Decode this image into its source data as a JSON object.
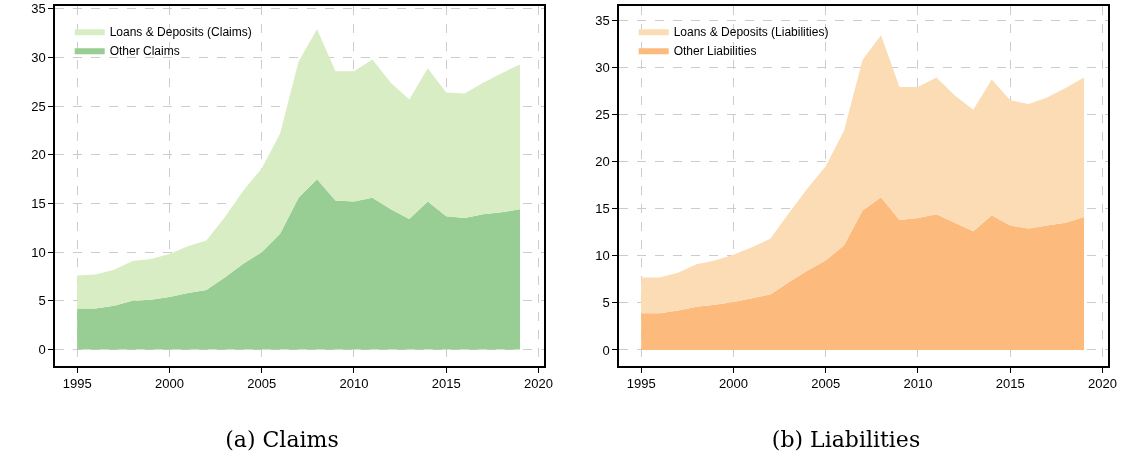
{
  "chart_data": [
    {
      "type": "area",
      "title": "(a) Claims",
      "stacked": true,
      "x": [
        1995,
        1996,
        1997,
        1998,
        1999,
        2000,
        2001,
        2002,
        2003,
        2004,
        2005,
        2006,
        2007,
        2008,
        2009,
        2010,
        2011,
        2012,
        2013,
        2014,
        2015,
        2016,
        2017,
        2018,
        2019
      ],
      "series": [
        {
          "name": "Other Claims",
          "color": "#98cd94",
          "values": [
            4.2,
            4.2,
            4.5,
            5.0,
            5.1,
            5.4,
            5.8,
            6.1,
            7.4,
            8.8,
            10.0,
            11.9,
            15.6,
            17.5,
            15.3,
            15.2,
            15.6,
            14.4,
            13.4,
            15.2,
            13.7,
            13.5,
            13.9,
            14.1,
            14.4
          ]
        },
        {
          "name": "Loans & Deposits (Claims)",
          "color": "#d8edc4",
          "values": [
            3.4,
            3.5,
            3.7,
            4.1,
            4.2,
            4.4,
            4.8,
            5.1,
            6.2,
            7.5,
            8.6,
            10.3,
            14.0,
            15.4,
            13.3,
            13.4,
            14.2,
            13.0,
            12.3,
            13.7,
            12.7,
            12.8,
            13.5,
            14.3,
            14.9
          ]
        }
      ],
      "xlim": [
        1993.8,
        2020.3
      ],
      "xticks": [
        1995,
        2000,
        2005,
        2010,
        2015,
        2020
      ],
      "ylim": [
        -1.7,
        35.3
      ],
      "yticks": [
        0,
        5,
        10,
        15,
        20,
        25,
        30,
        35
      ],
      "grid": true,
      "legend": "top left"
    },
    {
      "type": "area",
      "title": "(b) Liabilities",
      "stacked": true,
      "x": [
        1995,
        1996,
        1997,
        1998,
        1999,
        2000,
        2001,
        2002,
        2003,
        2004,
        2005,
        2006,
        2007,
        2008,
        2009,
        2010,
        2011,
        2012,
        2013,
        2014,
        2015,
        2016,
        2017,
        2018,
        2019
      ],
      "series": [
        {
          "name": "Other Liabilities",
          "color": "#fdba7d",
          "values": [
            3.9,
            3.9,
            4.2,
            4.6,
            4.8,
            5.1,
            5.5,
            5.9,
            7.2,
            8.4,
            9.5,
            11.1,
            14.8,
            16.2,
            13.8,
            14.0,
            14.4,
            13.5,
            12.6,
            14.3,
            13.2,
            12.9,
            13.2,
            13.5,
            14.1
          ]
        },
        {
          "name": "Loans & Deposits (Liabilities)",
          "color": "#fcdcb4",
          "values": [
            3.8,
            3.8,
            4.0,
            4.5,
            4.7,
            5.0,
            5.4,
            5.9,
            7.3,
            8.7,
            10.0,
            12.2,
            16.0,
            17.2,
            14.1,
            13.9,
            14.5,
            13.5,
            12.9,
            14.4,
            13.3,
            13.2,
            13.6,
            14.3,
            14.8
          ]
        }
      ],
      "xlim": [
        1993.8,
        2020.3
      ],
      "xticks": [
        1995,
        2000,
        2005,
        2010,
        2015,
        2020
      ],
      "ylim": [
        -1.7,
        36.5
      ],
      "yticks": [
        0,
        5,
        10,
        15,
        20,
        25,
        30,
        35
      ],
      "grid": true,
      "legend": "top left"
    }
  ]
}
